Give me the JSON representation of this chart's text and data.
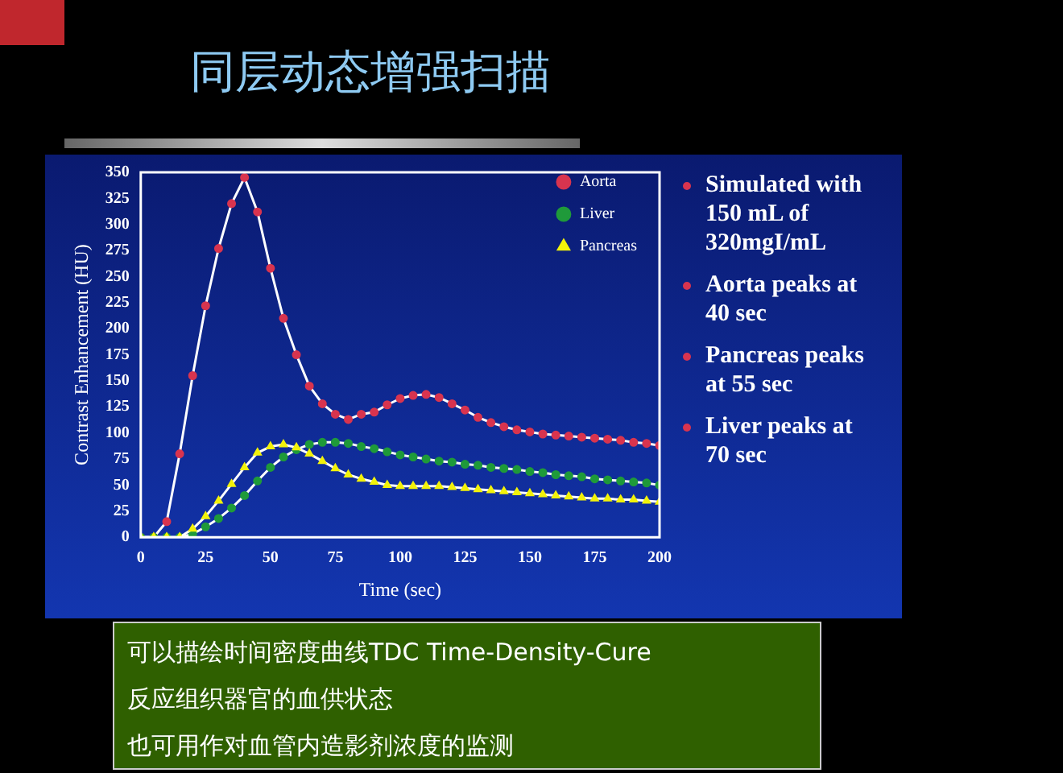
{
  "chart_data": {
    "type": "line",
    "title": "同层动态增强扫描",
    "xlabel": "Time (sec)",
    "ylabel": "Contrast Enhancement (HU)",
    "x": [
      0,
      5,
      10,
      15,
      20,
      25,
      30,
      35,
      40,
      45,
      50,
      55,
      60,
      65,
      70,
      75,
      80,
      85,
      90,
      95,
      100,
      105,
      110,
      115,
      120,
      125,
      130,
      135,
      140,
      145,
      150,
      155,
      160,
      165,
      170,
      175,
      180,
      185,
      190,
      195,
      200
    ],
    "series": [
      {
        "name": "Aorta",
        "color": "#d8344f",
        "marker": "circle",
        "values": [
          0,
          0,
          15,
          80,
          155,
          222,
          277,
          320,
          345,
          312,
          258,
          210,
          175,
          145,
          128,
          118,
          113,
          118,
          120,
          127,
          133,
          136,
          137,
          134,
          128,
          122,
          115,
          110,
          106,
          103,
          101,
          99,
          98,
          97,
          96,
          95,
          94,
          93,
          91,
          90,
          88
        ]
      },
      {
        "name": "Liver",
        "color": "#1f9a3a",
        "marker": "circle",
        "values": [
          0,
          0,
          0,
          0,
          3,
          10,
          18,
          28,
          40,
          54,
          67,
          77,
          84,
          89,
          91,
          91,
          90,
          87,
          85,
          82,
          79,
          77,
          75,
          73,
          72,
          70,
          69,
          67,
          66,
          65,
          63,
          62,
          60,
          59,
          58,
          56,
          55,
          54,
          53,
          52,
          50
        ]
      },
      {
        "name": "Pancreas",
        "color": "#f2f20a",
        "marker": "triangle",
        "values": [
          0,
          0,
          0,
          0,
          8,
          20,
          35,
          51,
          67,
          81,
          87,
          89,
          86,
          80,
          73,
          66,
          60,
          56,
          53,
          50,
          49,
          49,
          49,
          49,
          48,
          47,
          46,
          45,
          44,
          43,
          42,
          41,
          40,
          39,
          38,
          37,
          37,
          36,
          36,
          35,
          34
        ]
      }
    ],
    "xlim": [
      0,
      200
    ],
    "xticks": [
      0,
      25,
      50,
      75,
      100,
      125,
      150,
      175,
      200
    ],
    "ylim": [
      0,
      350
    ],
    "yticks": [
      0,
      25,
      50,
      75,
      100,
      125,
      150,
      175,
      200,
      225,
      250,
      275,
      300,
      325,
      350
    ],
    "grid": false,
    "legend": "top right",
    "annotations": [
      "Simulated with 150 mL of 320mgI/mL",
      "Aorta peaks at 40 sec",
      "Pancreas peaks at 55 sec",
      "Liver peaks at 70 sec",
      "可以描绘时间密度曲线TDC Time-Density-Cure",
      "反应组织器官的血供状态",
      "也可用作对血管内造影剂浓度的监测"
    ]
  }
}
